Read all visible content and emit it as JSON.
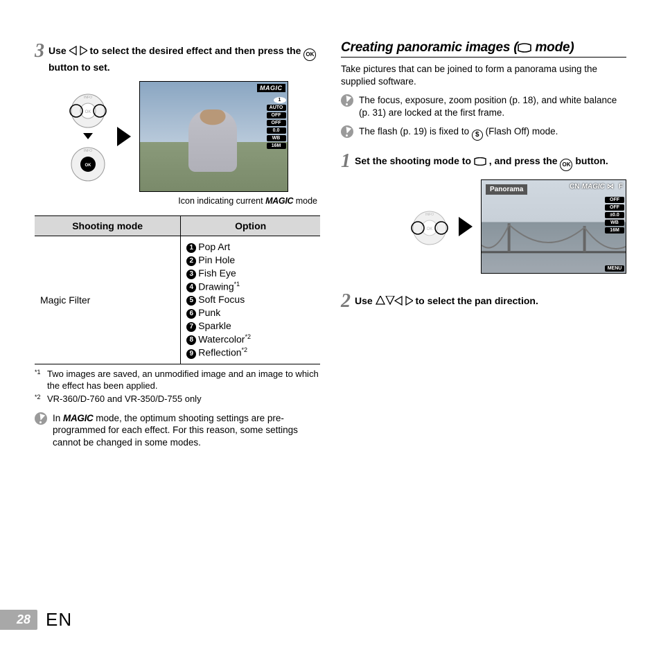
{
  "left": {
    "step3": {
      "num": "3",
      "text_a": "Use ",
      "text_b": " to select the desired effect and then press the ",
      "text_c": " button to set.",
      "ok": "OK"
    },
    "caption_a": "Icon indicating current ",
    "caption_magic": "MAGIC",
    "caption_b": " mode",
    "table": {
      "h1": "Shooting mode",
      "h2": "Option",
      "mode": "Magic Filter",
      "options": [
        "Pop Art",
        "Pin Hole",
        "Fish Eye",
        "Drawing",
        "Soft Focus",
        "Punk",
        "Sparkle",
        "Watercolor",
        "Reflection"
      ],
      "option_sup": [
        "",
        "",
        "",
        "*1",
        "",
        "",
        "",
        "*2",
        "*2"
      ]
    },
    "fn1_mark": "*1",
    "fn1": "Two images are saved, an unmodified image and an image to which the effect has been applied.",
    "fn2_mark": "*2",
    "fn2": "VR-360/D-760 and VR-350/D-755 only",
    "note_a": "In ",
    "note_magic": "MAGIC",
    "note_b": " mode, the optimum shooting settings are pre-programmed for each effect. For this reason, some settings cannot be changed in some modes.",
    "osd": [
      "MAGIC",
      "1",
      "AUTO",
      "OFF",
      "OFF",
      "0.0",
      "WB",
      "16M"
    ]
  },
  "right": {
    "title_a": "Creating panoramic images (",
    "title_b": " mode)",
    "intro": "Take pictures that can be joined to form a panorama using the supplied software.",
    "note1": "The focus, exposure, zoom position (p. 18), and white balance (p. 31) are locked at the first frame.",
    "note2_a": "The flash (p. 19) is fixed to ",
    "note2_b": " (Flash Off) mode.",
    "flash": "$",
    "step1": {
      "num": "1",
      "text_a": "Set the shooting mode to ",
      "text_b": ", and press the ",
      "text_c": " button.",
      "ok": "OK"
    },
    "panorama_label": "Panorama",
    "top_icons": [
      "CN",
      "MAGIC",
      "⋈",
      "F"
    ],
    "osd": [
      "OFF",
      "OFF",
      "±0.0",
      "WB",
      "16M",
      "MENU"
    ],
    "step2": {
      "num": "2",
      "text_a": "Use ",
      "text_b": " to select the pan direction."
    }
  },
  "footer": {
    "page": "28",
    "lang": "EN"
  },
  "colors": {
    "gray": "#7a7a7a",
    "th_bg": "#d8d8d8",
    "tab_bg": "#a8a8a8"
  }
}
